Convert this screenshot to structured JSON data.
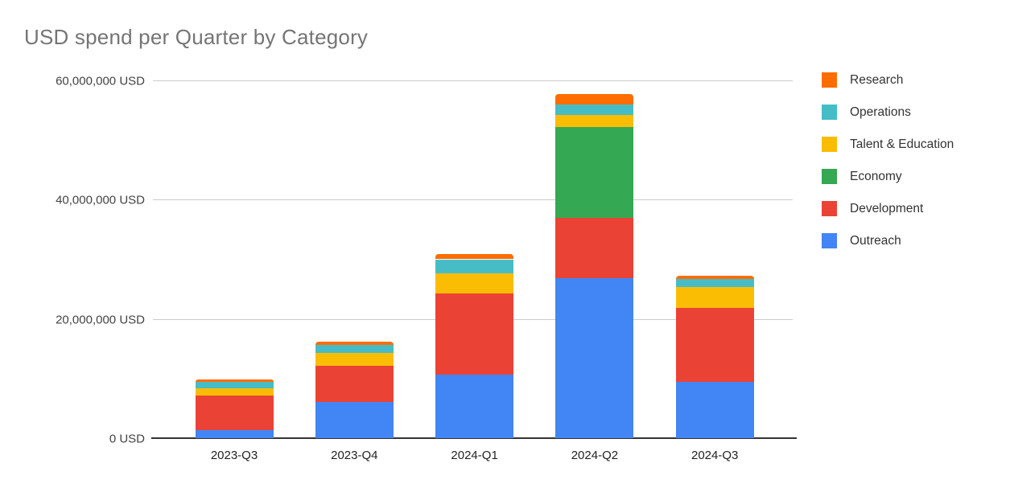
{
  "chart_data": {
    "type": "bar",
    "stacked": true,
    "title": "USD spend per Quarter by Category",
    "unit": "USD",
    "categories": [
      "2023-Q3",
      "2023-Q4",
      "2024-Q1",
      "2024-Q2",
      "2024-Q3"
    ],
    "series": [
      {
        "name": "Outreach",
        "color": "#4285F4",
        "values": [
          1300000,
          6100000,
          10700000,
          26800000,
          9500000
        ]
      },
      {
        "name": "Development",
        "color": "#EA4335",
        "values": [
          5900000,
          6100000,
          13600000,
          10200000,
          12300000
        ]
      },
      {
        "name": "Economy",
        "color": "#34A853",
        "values": [
          0,
          0,
          0,
          15200000,
          0
        ]
      },
      {
        "name": "Talent & Education",
        "color": "#FBBC04",
        "values": [
          1100000,
          2100000,
          3300000,
          2000000,
          3600000
        ]
      },
      {
        "name": "Operations",
        "color": "#46BDC6",
        "values": [
          1100000,
          1350000,
          2400000,
          1800000,
          1350000
        ]
      },
      {
        "name": "Research",
        "color": "#FF6D01",
        "values": [
          500000,
          550000,
          850000,
          1650000,
          550000
        ]
      }
    ],
    "y_axis": {
      "range": [
        0,
        60000000
      ],
      "ticks": [
        0,
        20000000,
        40000000,
        60000000
      ],
      "tick_labels": [
        "0 USD",
        "20,000,000 USD",
        "40,000,000 USD",
        "60,000,000 USD"
      ],
      "grid": true
    },
    "x_axis": {
      "tick_labels": [
        "2023-Q3",
        "2023-Q4",
        "2024-Q1",
        "2024-Q2",
        "2024-Q3"
      ]
    },
    "legend": {
      "position": "right",
      "items_top_to_bottom": [
        "Research",
        "Operations",
        "Talent & Education",
        "Economy",
        "Development",
        "Outreach"
      ]
    },
    "colors": {
      "background": "#ffffff",
      "title_text": "#757575",
      "axis_label": "#444444",
      "gridline": "#cccccc",
      "baseline": "#333333"
    }
  }
}
